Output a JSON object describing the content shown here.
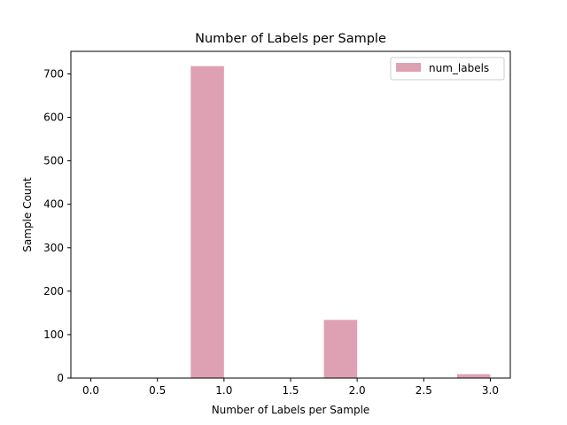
{
  "chart_data": {
    "type": "bar",
    "title": "Number of Labels per Sample",
    "xlabel": "Number of Labels per Sample",
    "ylabel": "Sample Count",
    "xlim": [
      -0.15,
      3.15
    ],
    "ylim": [
      0,
      752
    ],
    "xticks": [
      0.0,
      0.5,
      1.0,
      1.5,
      2.0,
      2.5,
      3.0
    ],
    "xtick_labels": [
      "0.0",
      "0.5",
      "1.0",
      "1.5",
      "2.0",
      "2.5",
      "3.0"
    ],
    "yticks": [
      0,
      100,
      200,
      300,
      400,
      500,
      600,
      700
    ],
    "ytick_labels": [
      "0",
      "100",
      "200",
      "300",
      "400",
      "500",
      "600",
      "700"
    ],
    "grid": false,
    "legend_position": "top-right",
    "series": [
      {
        "name": "num_labels",
        "color": "#dea1b3",
        "bins": [
          {
            "x0": 0.75,
            "x1": 1.0,
            "value": 718
          },
          {
            "x0": 1.75,
            "x1": 2.0,
            "value": 134
          },
          {
            "x0": 2.75,
            "x1": 3.0,
            "value": 9
          }
        ]
      }
    ]
  }
}
